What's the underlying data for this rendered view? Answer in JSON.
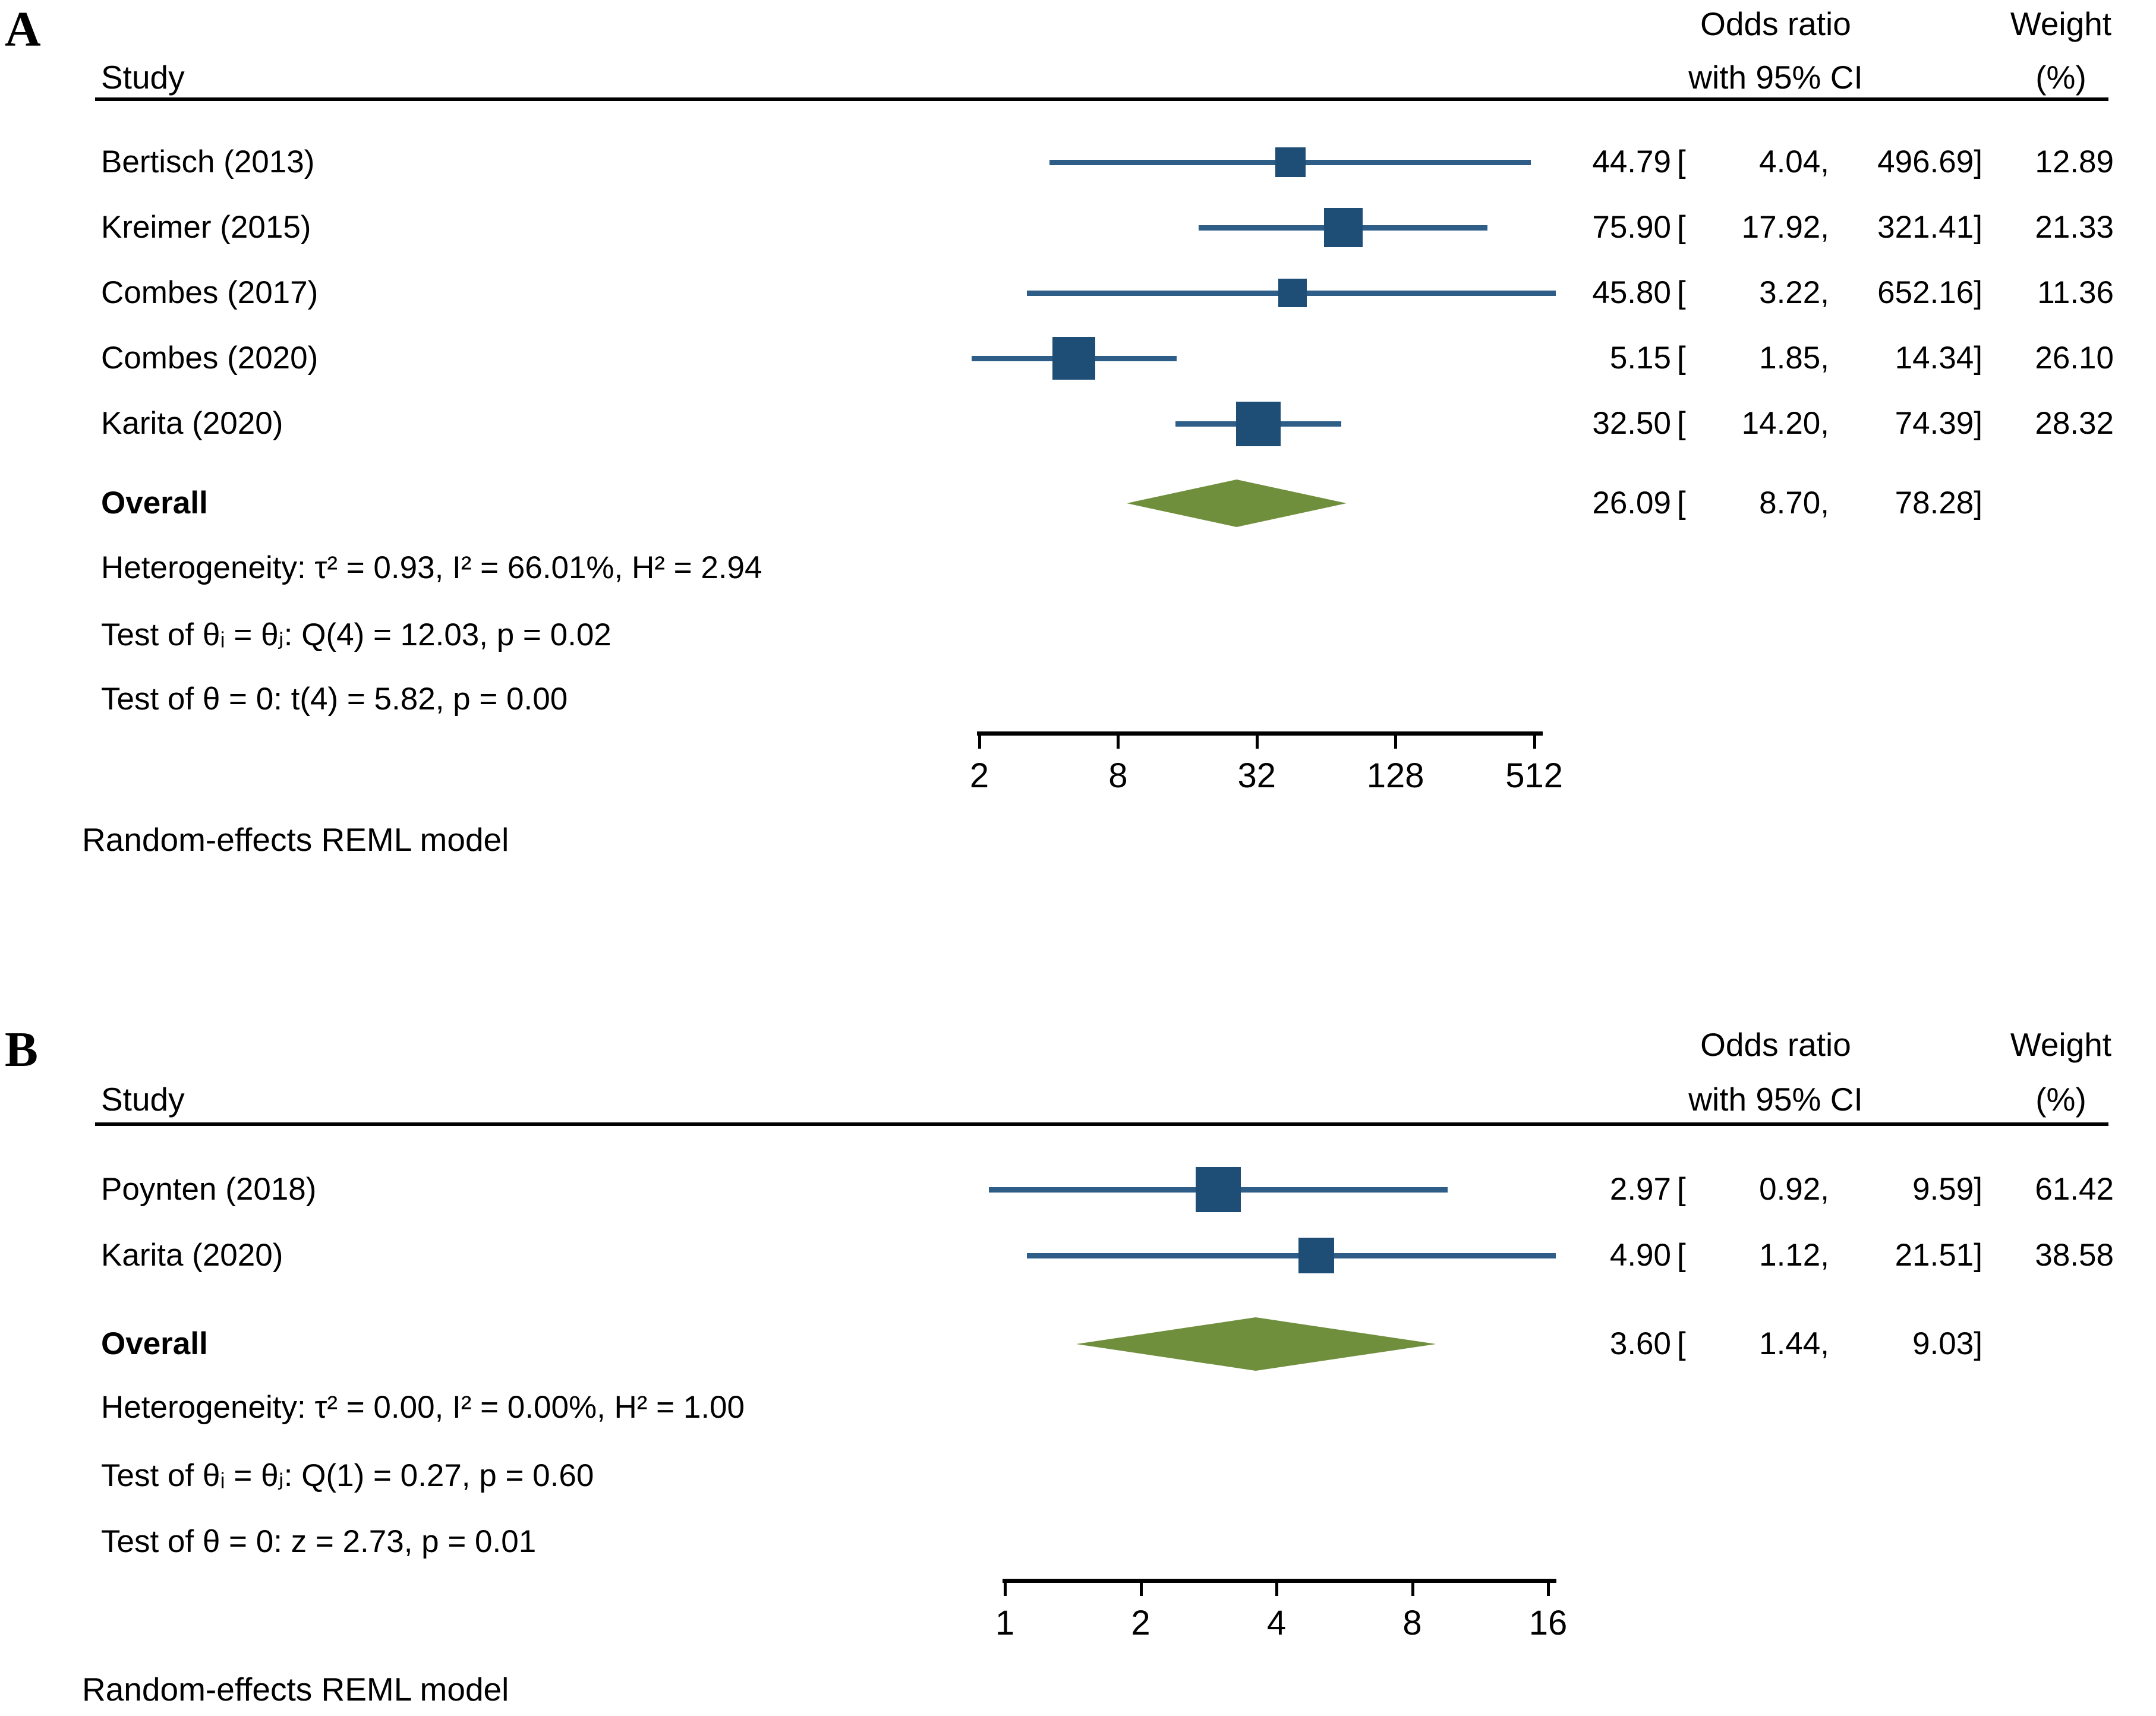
{
  "chart_data": {
    "type": "forest_plot",
    "x_scale": "log",
    "effect_measure": "Odds ratio",
    "colors": {
      "square_navy": "#1e4d76",
      "ci_line_navy": "#2e5e88",
      "diamond_olive": "#6f8f3d",
      "text_black": "#000000"
    },
    "ci_format": {
      "open": "[",
      "sep": ",",
      "close": "]"
    },
    "panels": [
      {
        "label": "A",
        "headers": {
          "study": "Study",
          "or_line1": "Odds ratio",
          "or_line2": "with 95% CI",
          "weight_line1": "Weight",
          "weight_line2": "(%)"
        },
        "studies": [
          {
            "name": "Bertisch (2013)",
            "or": 44.79,
            "ci_low": 4.04,
            "ci_high": 496.69,
            "weight": 12.89
          },
          {
            "name": "Kreimer (2015)",
            "or": 75.9,
            "ci_low": 17.92,
            "ci_high": 321.41,
            "weight": 21.33
          },
          {
            "name": "Combes (2017)",
            "or": 45.8,
            "ci_low": 3.22,
            "ci_high": 652.16,
            "weight": 11.36
          },
          {
            "name": "Combes (2020)",
            "or": 5.15,
            "ci_low": 1.85,
            "ci_high": 14.34,
            "weight": 26.1
          },
          {
            "name": "Karita (2020)",
            "or": 32.5,
            "ci_low": 14.2,
            "ci_high": 74.39,
            "weight": 28.32
          }
        ],
        "overall": {
          "name": "Overall",
          "or": 26.09,
          "ci_low": 8.7,
          "ci_high": 78.28
        },
        "stats": [
          "Heterogeneity: τ² = 0.93, I² = 66.01%, H² = 2.94",
          "Test of θᵢ = θⱼ: Q(4) = 12.03, p = 0.02",
          "Test of θ = 0: t(4) = 5.82, p = 0.00"
        ],
        "axis_ticks": [
          2,
          8,
          32,
          128,
          512
        ],
        "note": "Random-effects REML model"
      },
      {
        "label": "B",
        "headers": {
          "study": "Study",
          "or_line1": "Odds ratio",
          "or_line2": "with 95% CI",
          "weight_line1": "Weight",
          "weight_line2": "(%)"
        },
        "studies": [
          {
            "name": "Poynten (2018)",
            "or": 2.97,
            "ci_low": 0.92,
            "ci_high": 9.59,
            "weight": 61.42
          },
          {
            "name": "Karita (2020)",
            "or": 4.9,
            "ci_low": 1.12,
            "ci_high": 21.51,
            "weight": 38.58
          }
        ],
        "overall": {
          "name": "Overall",
          "or": 3.6,
          "ci_low": 1.44,
          "ci_high": 9.03
        },
        "stats": [
          "Heterogeneity: τ² = 0.00, I² = 0.00%, H² = 1.00",
          "Test of θᵢ = θⱼ: Q(1) = 0.27, p = 0.60",
          "Test of θ = 0: z = 2.73, p = 0.01"
        ],
        "axis_ticks": [
          1,
          2,
          4,
          8,
          16
        ],
        "note": "Random-effects REML model"
      }
    ]
  }
}
